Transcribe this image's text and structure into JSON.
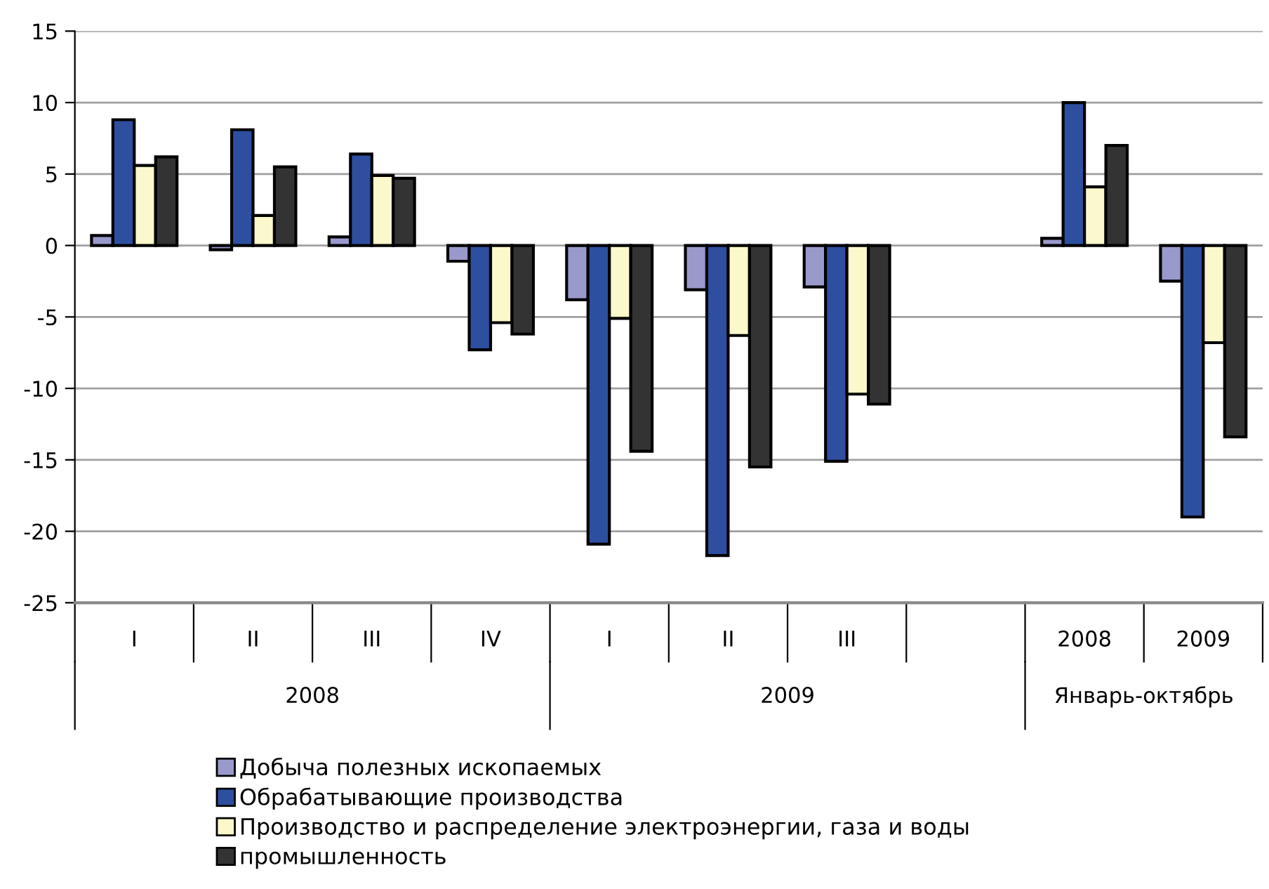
{
  "chart_data": {
    "type": "bar",
    "categories": [
      "I",
      "II",
      "III",
      "IV",
      "I",
      "II",
      "III",
      null,
      "2008",
      "2009"
    ],
    "series": [
      {
        "name": "Добыча полезных ископаемых",
        "color": "#9999cc",
        "values": [
          0.7,
          -0.3,
          0.6,
          -1.1,
          -3.8,
          -3.1,
          -2.9,
          null,
          0.5,
          -2.5
        ]
      },
      {
        "name": "Обрабатывающие производства",
        "color": "#2e4fa0",
        "values": [
          8.8,
          8.1,
          6.4,
          -7.3,
          -20.9,
          -21.7,
          -15.1,
          null,
          10.0,
          -19.0
        ]
      },
      {
        "name": "Производство и распределение электроэнергии, газа и воды",
        "color": "#fbf8cc",
        "values": [
          5.6,
          2.1,
          4.9,
          -5.4,
          -5.1,
          -6.3,
          -10.4,
          null,
          4.1,
          -6.8
        ]
      },
      {
        "name": "промышленность",
        "color": "#333333",
        "values": [
          6.2,
          5.5,
          4.7,
          -6.2,
          -14.4,
          -15.5,
          -11.1,
          null,
          7.0,
          -13.4
        ]
      }
    ],
    "annotations": [
      "2008",
      "2009",
      "Январь-октябрь"
    ],
    "ylim": [
      -25,
      15
    ],
    "yticks": [
      -25,
      -20,
      -15,
      -10,
      -5,
      0,
      5,
      10,
      15
    ],
    "grid": "y",
    "legend": "bottom"
  }
}
